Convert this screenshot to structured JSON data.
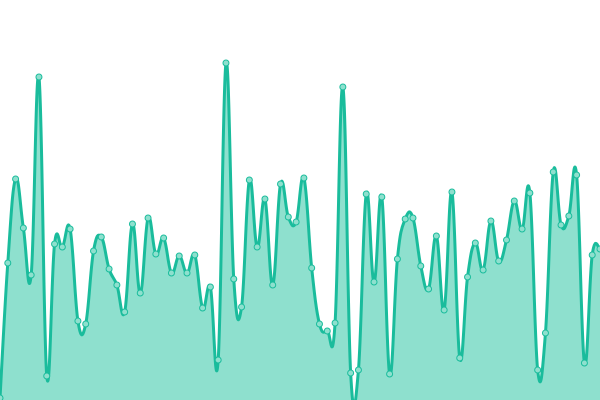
{
  "chart_data": {
    "type": "area",
    "smooth": true,
    "grid": false,
    "axes_visible": false,
    "ylim": [
      0,
      400
    ],
    "colors": {
      "line": "#1abc9c",
      "fill": "#8ee0ce",
      "point_fill": "#8ee0ce"
    },
    "series": [
      {
        "values": [
          2,
          137,
          221,
          172,
          125,
          323,
          24,
          156,
          153,
          171,
          79,
          76,
          149,
          163,
          131,
          115,
          88,
          176,
          107,
          182,
          146,
          162,
          127,
          144,
          127,
          145,
          92,
          113,
          40,
          337,
          121,
          93,
          220,
          153,
          201,
          115,
          216,
          183,
          178,
          222,
          132,
          76,
          69,
          77,
          313,
          27,
          30,
          206,
          118,
          203,
          26,
          141,
          181,
          182,
          134,
          111,
          164,
          90,
          208,
          42,
          123,
          157,
          130,
          179,
          139,
          160,
          199,
          171,
          207,
          30,
          67,
          228,
          175,
          184,
          225,
          37,
          145,
          151
        ]
      }
    ]
  }
}
